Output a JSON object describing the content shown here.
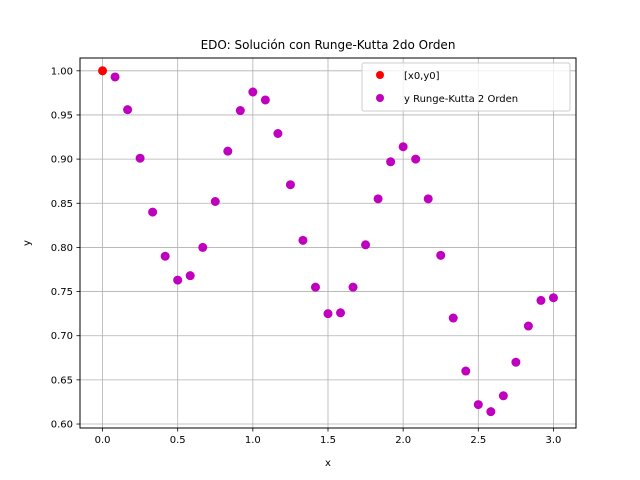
{
  "chart_data": {
    "type": "scatter",
    "title": "EDO: Solución con Runge-Kutta 2do Orden",
    "xlabel": "x",
    "ylabel": "y",
    "xlim": [
      -0.15,
      3.15
    ],
    "ylim": [
      0.5955,
      1.0145
    ],
    "xticks": [
      0.0,
      0.5,
      1.0,
      1.5,
      2.0,
      2.5,
      3.0
    ],
    "xtick_labels": [
      "0.0",
      "0.5",
      "1.0",
      "1.5",
      "2.0",
      "2.5",
      "3.0"
    ],
    "yticks": [
      0.6,
      0.65,
      0.7,
      0.75,
      0.8,
      0.85,
      0.9,
      0.95,
      1.0
    ],
    "ytick_labels": [
      "0.60",
      "0.65",
      "0.70",
      "0.75",
      "0.80",
      "0.85",
      "0.90",
      "0.95",
      "1.00"
    ],
    "grid": true,
    "legend_position": "top-right",
    "series": [
      {
        "name": "[x0,y0]",
        "color": "#ff0000",
        "x": [
          0.0
        ],
        "y": [
          1.0
        ]
      },
      {
        "name": "y Runge-Kutta 2 Orden",
        "color": "#bf00bf",
        "x": [
          0.0833,
          0.1667,
          0.25,
          0.3333,
          0.4167,
          0.5,
          0.5833,
          0.6667,
          0.75,
          0.8333,
          0.9167,
          1.0,
          1.0833,
          1.1667,
          1.25,
          1.3333,
          1.4167,
          1.5,
          1.5833,
          1.6667,
          1.75,
          1.8333,
          1.9167,
          2.0,
          2.0833,
          2.1667,
          2.25,
          2.3333,
          2.4167,
          2.5,
          2.5833,
          2.6667,
          2.75,
          2.8333,
          2.9167,
          3.0
        ],
        "y": [
          0.993,
          0.956,
          0.901,
          0.84,
          0.79,
          0.763,
          0.768,
          0.8,
          0.852,
          0.909,
          0.955,
          0.976,
          0.967,
          0.929,
          0.871,
          0.808,
          0.755,
          0.725,
          0.726,
          0.755,
          0.803,
          0.855,
          0.897,
          0.914,
          0.9,
          0.855,
          0.791,
          0.72,
          0.66,
          0.622,
          0.614,
          0.632,
          0.67,
          0.711,
          0.74,
          0.743
        ]
      }
    ]
  }
}
